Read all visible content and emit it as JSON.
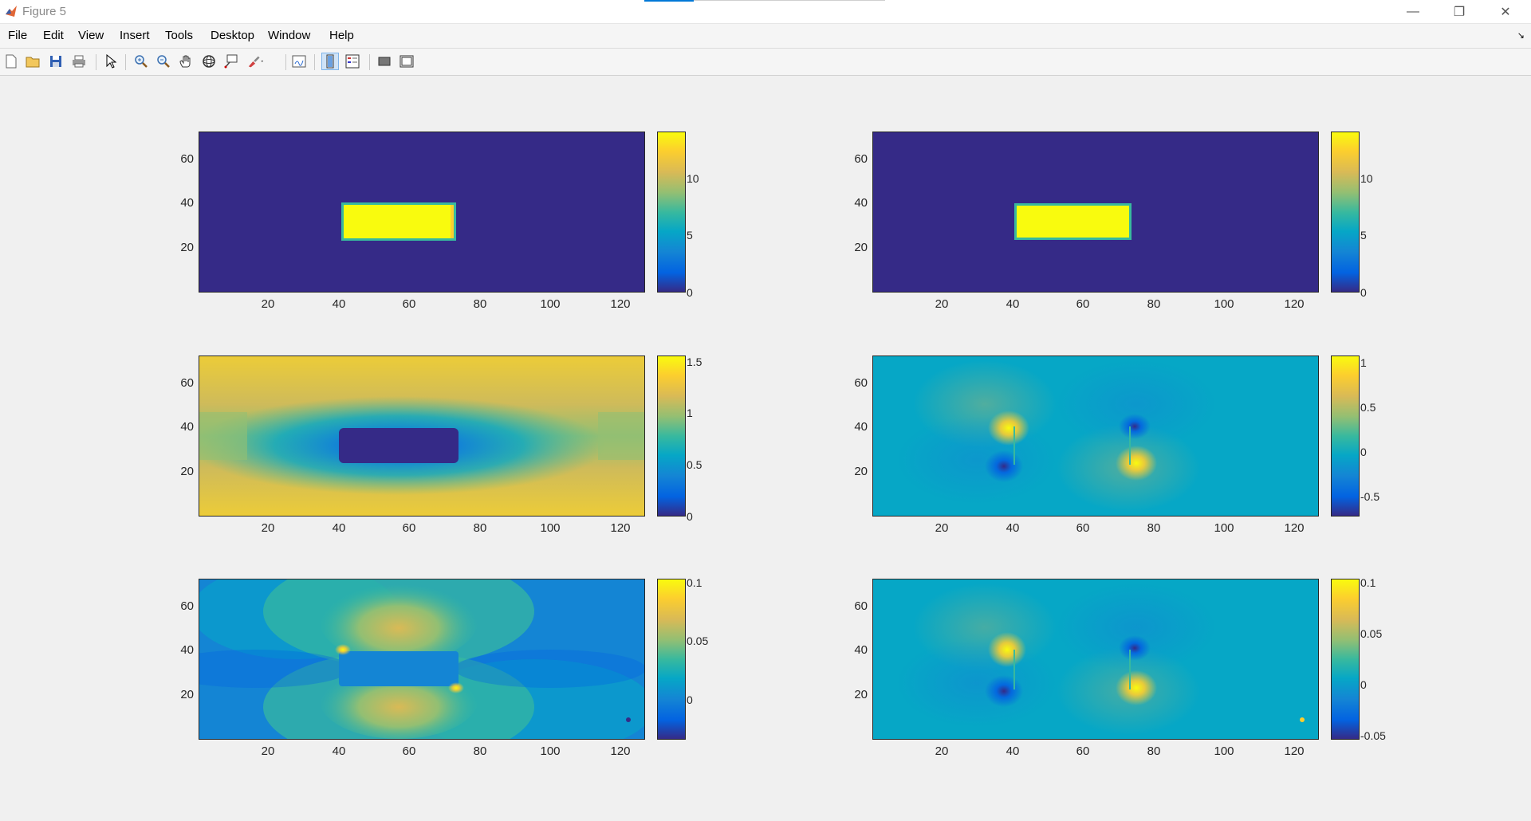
{
  "window": {
    "title": "Figure 5",
    "controls": {
      "minimize": "—",
      "maximize": "❐",
      "close": "✕"
    }
  },
  "menu": [
    "File",
    "Edit",
    "View",
    "Insert",
    "Tools",
    "Desktop",
    "Window",
    "Help"
  ],
  "toolbar": {
    "icons": [
      "new-figure-icon",
      "open-file-icon",
      "save-icon",
      "print-icon",
      "pointer-icon",
      "zoom-in-icon",
      "zoom-out-icon",
      "pan-icon",
      "rotate-3d-icon",
      "data-cursor-icon",
      "brush-icon",
      "link-plot-icon",
      "colorbar-toggle-icon",
      "legend-toggle-icon",
      "hide-plot-tools-icon",
      "show-plot-tools-icon"
    ]
  },
  "plots": {
    "x_ticks": [
      "20",
      "40",
      "60",
      "80",
      "100",
      "120"
    ],
    "y_ticks": [
      "20",
      "40",
      "60"
    ],
    "p1": {
      "cbar_ticks": [
        "10",
        "5",
        "0"
      ]
    },
    "p2": {
      "cbar_ticks": [
        "10",
        "5",
        "0"
      ]
    },
    "p3": {
      "cbar_ticks": [
        "1.5",
        "1",
        "0.5",
        "0"
      ]
    },
    "p4": {
      "cbar_ticks": [
        "1",
        "0.5",
        "0",
        "-0.5"
      ]
    },
    "p5": {
      "cbar_ticks": [
        "0.1",
        "0.05",
        "0"
      ]
    },
    "p6": {
      "cbar_ticks": [
        "0.1",
        "0.05",
        "0",
        "-0.05"
      ]
    }
  },
  "colormap": "parula",
  "colors": {
    "dark": "#352a87",
    "yellow": "#f9fb0e",
    "teal": "#06a7c6",
    "blue": "#1485d4"
  }
}
